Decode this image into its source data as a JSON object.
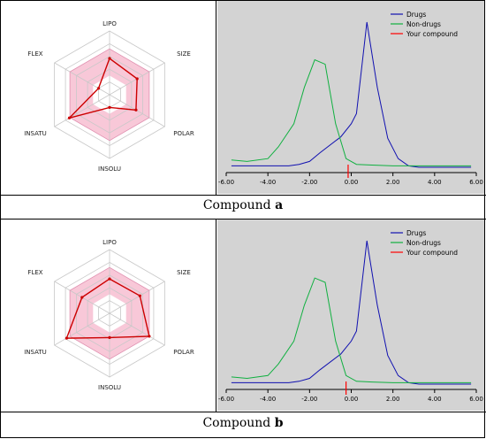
{
  "compounds": [
    {
      "caption_prefix": "Compound ",
      "caption_letter": "a",
      "radar": {
        "axes": [
          "LIPO",
          "SIZE",
          "POLAR",
          "INSOLU",
          "INSATU",
          "FLEX"
        ],
        "values": [
          0.57,
          0.5,
          0.48,
          0.2,
          0.73,
          0.2
        ],
        "colors": {
          "band": "#f8c8d8",
          "compound": "#cc0000",
          "grid": "#c8c8c8"
        }
      },
      "chart_data": {
        "type": "line",
        "xlim": [
          -6,
          6
        ],
        "ylim": [
          0,
          1
        ],
        "ticks": [
          "-6.00",
          "-4.00",
          "-2.00",
          "0.00",
          "2.00",
          "4.00",
          "6.00"
        ],
        "background": "#d3d3d3",
        "series": [
          {
            "name": "Drugs",
            "color": "#1010b0",
            "points": [
              [
                -5.75,
                0.01
              ],
              [
                -5,
                0.01
              ],
              [
                -4,
                0.01
              ],
              [
                -3,
                0.01
              ],
              [
                -2.5,
                0.02
              ],
              [
                -2,
                0.04
              ],
              [
                -1.5,
                0.1
              ],
              [
                -0.5,
                0.21
              ],
              [
                0,
                0.3
              ],
              [
                0.25,
                0.37
              ],
              [
                0.75,
                1.0
              ],
              [
                1.25,
                0.55
              ],
              [
                1.75,
                0.2
              ],
              [
                2.25,
                0.06
              ],
              [
                2.75,
                0.01
              ],
              [
                3.25,
                0.0
              ],
              [
                5.75,
                0.0
              ]
            ]
          },
          {
            "name": "Non-drugs",
            "color": "#10b040",
            "points": [
              [
                -5.75,
                0.05
              ],
              [
                -5,
                0.04
              ],
              [
                -4,
                0.06
              ],
              [
                -3.5,
                0.14
              ],
              [
                -2.75,
                0.3
              ],
              [
                -2.25,
                0.55
              ],
              [
                -1.75,
                0.74
              ],
              [
                -1.25,
                0.71
              ],
              [
                -0.75,
                0.3
              ],
              [
                -0.25,
                0.06
              ],
              [
                0.25,
                0.02
              ],
              [
                1,
                0.015
              ],
              [
                2,
                0.01
              ],
              [
                3,
                0.01
              ],
              [
                5.75,
                0.01
              ]
            ]
          },
          {
            "name": "Your compound",
            "color": "#ff0000",
            "x": -0.15
          }
        ]
      }
    },
    {
      "caption_prefix": "Compound ",
      "caption_letter": "b",
      "radar": {
        "axes": [
          "LIPO",
          "SIZE",
          "POLAR",
          "INSOLU",
          "INSATU",
          "FLEX"
        ],
        "values": [
          0.54,
          0.55,
          0.72,
          0.38,
          0.78,
          0.5
        ],
        "colors": {
          "band": "#f8c8d8",
          "compound": "#cc0000",
          "grid": "#c8c8c8"
        }
      },
      "chart_data": {
        "type": "line",
        "xlim": [
          -6,
          6
        ],
        "ylim": [
          0,
          1
        ],
        "ticks": [
          "-6.00",
          "-4.00",
          "-2.00",
          "0.00",
          "2.00",
          "4.00",
          "6.00"
        ],
        "background": "#d3d3d3",
        "series": [
          {
            "name": "Drugs",
            "color": "#1010b0",
            "points": [
              [
                -5.75,
                0.01
              ],
              [
                -5,
                0.01
              ],
              [
                -4,
                0.01
              ],
              [
                -3,
                0.01
              ],
              [
                -2.5,
                0.02
              ],
              [
                -2,
                0.04
              ],
              [
                -1.5,
                0.1
              ],
              [
                -0.5,
                0.21
              ],
              [
                0,
                0.3
              ],
              [
                0.25,
                0.37
              ],
              [
                0.75,
                1.0
              ],
              [
                1.25,
                0.55
              ],
              [
                1.75,
                0.2
              ],
              [
                2.25,
                0.06
              ],
              [
                2.75,
                0.01
              ],
              [
                3.25,
                0.0
              ],
              [
                5.75,
                0.0
              ]
            ]
          },
          {
            "name": "Non-drugs",
            "color": "#10b040",
            "points": [
              [
                -5.75,
                0.05
              ],
              [
                -5,
                0.04
              ],
              [
                -4,
                0.06
              ],
              [
                -3.5,
                0.14
              ],
              [
                -2.75,
                0.3
              ],
              [
                -2.25,
                0.55
              ],
              [
                -1.75,
                0.74
              ],
              [
                -1.25,
                0.71
              ],
              [
                -0.75,
                0.3
              ],
              [
                -0.25,
                0.06
              ],
              [
                0.25,
                0.02
              ],
              [
                1,
                0.015
              ],
              [
                2,
                0.01
              ],
              [
                3,
                0.01
              ],
              [
                5.75,
                0.01
              ]
            ]
          },
          {
            "name": "Your compound",
            "color": "#ff0000",
            "x": -0.25
          }
        ]
      }
    }
  ]
}
